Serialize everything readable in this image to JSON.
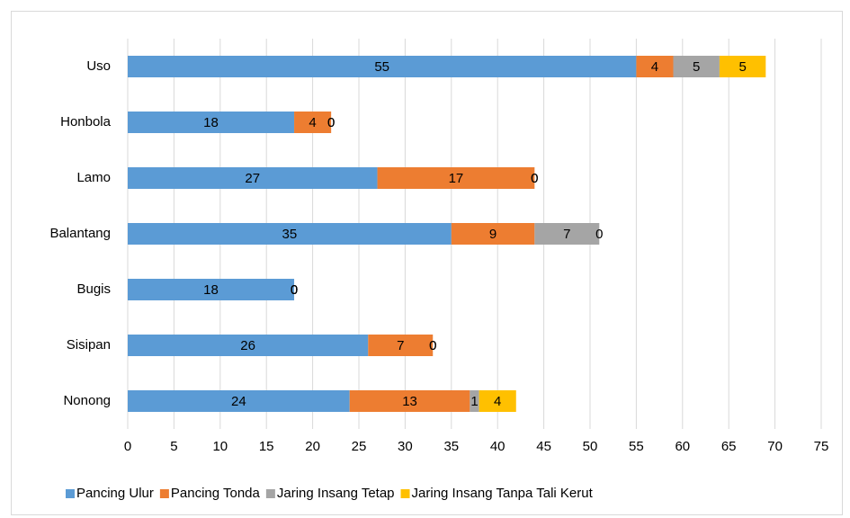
{
  "chart_data": {
    "type": "stacked_barh",
    "categories": [
      "Uso",
      "Honbola",
      "Lamo",
      "Balantang",
      "Bugis",
      "Sisipan",
      "Nonong"
    ],
    "series": [
      {
        "name": "Pancing Ulur",
        "color": "#5b9bd5",
        "values": [
          55,
          18,
          27,
          35,
          18,
          26,
          24
        ]
      },
      {
        "name": "Pancing Tonda",
        "color": "#ed7d31",
        "values": [
          4,
          4,
          17,
          9,
          0,
          7,
          13
        ]
      },
      {
        "name": "Jaring Insang Tetap",
        "color": "#a5a5a5",
        "values": [
          5,
          0,
          0,
          7,
          0,
          0,
          1
        ]
      },
      {
        "name": "Jaring Insang Tanpa Tali Kerut",
        "color": "#ffc000",
        "values": [
          5,
          0,
          0,
          0,
          0,
          0,
          4
        ]
      }
    ],
    "xlim": [
      0,
      75
    ],
    "xticks": [
      0,
      5,
      10,
      15,
      20,
      25,
      30,
      35,
      40,
      45,
      50,
      55,
      60,
      65,
      70,
      75
    ],
    "grid": true,
    "legend": "bottom"
  }
}
